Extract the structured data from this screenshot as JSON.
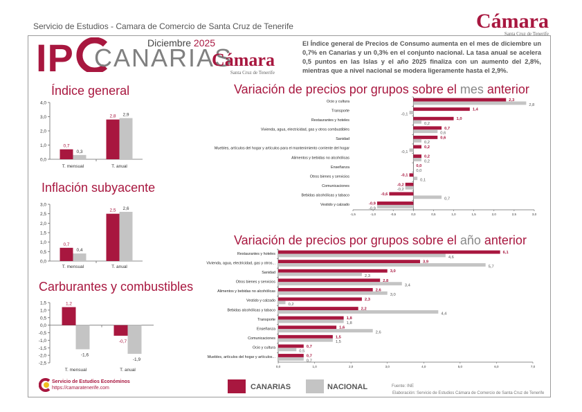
{
  "header": {
    "organization": "Servicio de Estudios - Camara de Comercio de Santa Cruz de Tenerife",
    "brand_word": "Cámara",
    "brand_sub": "Santa Cruz de Tenerife"
  },
  "banner": {
    "ipc": "IP",
    "region": "CANARIAS",
    "month": "Diciembre",
    "year": "2025",
    "summary": "El Índice general de Precios de Consumo aumenta en el mes de diciembre un 0,7% en Canarias y un 0,3% en el conjunto nacional. La tasa anual se acelera 0,5 puntos en las Islas y el año 2025 finaliza con un aumento del 2,8%, mientras que a nivel nacional se modera ligeramente hasta el 2,9%."
  },
  "colors": {
    "canarias": "#a8173f",
    "nacional": "#c4c4c4",
    "accent": "#a8173f"
  },
  "legend": {
    "canarias": "CANARIAS",
    "nacional": "NACIONAL"
  },
  "footer": {
    "service": "Servicio de Estudios Económinos",
    "url": "https://camaratenerife.com",
    "source": "Fuente: INE",
    "elaboration": "Elaboración: Servicio de Estudios Cámara de Comercio de Santa Cruz de Tenerife"
  },
  "chart_data": [
    {
      "id": "indice-general",
      "type": "bar",
      "title": "Índice general",
      "categories": [
        "T. mensual",
        "T. anual"
      ],
      "series": [
        {
          "name": "CANARIAS",
          "values": [
            0.7,
            2.8
          ],
          "labels": [
            "0,7",
            "2,8"
          ]
        },
        {
          "name": "NACIONAL",
          "values": [
            0.3,
            2.9
          ],
          "labels": [
            "0,3",
            "2,9"
          ]
        }
      ],
      "ylim": [
        0,
        4
      ],
      "yticks": [
        0,
        1,
        2,
        3,
        4
      ],
      "ytick_labels": [
        "0,0",
        "1,0",
        "2,0",
        "3,0",
        "4,0"
      ]
    },
    {
      "id": "inflacion-subyacente",
      "type": "bar",
      "title": "Inflación subyacente",
      "categories": [
        "T. mensual",
        "T. anual"
      ],
      "series": [
        {
          "name": "CANARIAS",
          "values": [
            0.7,
            2.5
          ],
          "labels": [
            "0,7",
            "2,5"
          ]
        },
        {
          "name": "NACIONAL",
          "values": [
            0.4,
            2.6
          ],
          "labels": [
            "0,4",
            "2,6"
          ]
        }
      ],
      "ylim": [
        0,
        3
      ],
      "yticks": [
        0,
        0.5,
        1,
        1.5,
        2,
        2.5,
        3
      ],
      "ytick_labels": [
        "0,0",
        "0,5",
        "1,0",
        "1,5",
        "2,0",
        "2,5",
        "3,0"
      ]
    },
    {
      "id": "carburantes",
      "type": "bar",
      "title": "Carburantes y combustibles",
      "categories": [
        "T. mensual",
        "T. anual"
      ],
      "series": [
        {
          "name": "CANARIAS",
          "values": [
            1.2,
            -0.7
          ],
          "labels": [
            "1,2",
            "-0,7"
          ]
        },
        {
          "name": "NACIONAL",
          "values": [
            -1.6,
            -1.9
          ],
          "labels": [
            "-1,6",
            "-1,9"
          ]
        }
      ],
      "ylim": [
        -2.5,
        1.5
      ],
      "yticks": [
        -2.5,
        -2,
        -1.5,
        -1,
        -0.5,
        0,
        0.5,
        1,
        1.5
      ],
      "ytick_labels": [
        "-2,5",
        "-2,0",
        "-1,5",
        "-1,0",
        "-0,5",
        "0,0",
        "0,5",
        "1,0",
        "1,5"
      ]
    },
    {
      "id": "grupos-mes",
      "type": "bar",
      "orientation": "horizontal",
      "title_parts": [
        "Variación de precios por grupos sobre el ",
        "mes",
        " anterior"
      ],
      "categories": [
        "Ocio y cultura",
        "Transporte",
        "Restaurantes y hoteles",
        "Vivienda, agua, electricidad, gas y otros combustibles",
        "Sanidad",
        "Muebles, artículos del hogar y artículos para el mantenimiento corriente del hogar",
        "Alimentos y bebidas no alcohólicas",
        "Enseñanza",
        "Otros bienes y servicios",
        "Comunicaciones",
        "Bebidas alcohólicas y tabaco",
        "Vestido y calzado"
      ],
      "series": [
        {
          "name": "CANARIAS",
          "values": [
            2.3,
            1.4,
            1.0,
            0.7,
            0.6,
            0.2,
            0.2,
            0.0,
            -0.1,
            -0.2,
            -0.6,
            -0.9
          ],
          "labels": [
            "2,3",
            "1,4",
            "1,0",
            "0,7",
            "0,6",
            "0,2",
            "0,2",
            "0,0",
            "-0,1",
            "-0,2",
            "-0,6",
            "-0,9"
          ]
        },
        {
          "name": "NACIONAL",
          "values": [
            2.8,
            -0.1,
            0.2,
            0.6,
            0.2,
            -0.1,
            0.2,
            0.0,
            0.1,
            -0.2,
            0.7,
            -0.9
          ],
          "labels": [
            "2,8",
            "-0,1",
            "0,2",
            "0,6",
            "0,2",
            "-0,1",
            "0,2",
            "0,0",
            "0,1",
            "-0,2",
            "0,7",
            "-0,9"
          ]
        }
      ],
      "xlim": [
        -1.5,
        3.0
      ],
      "xticks": [
        -1.5,
        -1,
        -0.5,
        0,
        0.5,
        1,
        1.5,
        2,
        2.5,
        3
      ],
      "xtick_labels": [
        "-1,5",
        "-1,0",
        "-0,5",
        "0,0",
        "0,5",
        "1,0",
        "1,5",
        "2,0",
        "2,5",
        "3,0"
      ]
    },
    {
      "id": "grupos-anio",
      "type": "bar",
      "orientation": "horizontal",
      "title_parts": [
        "Variación de precios por grupos sobre el ",
        "año",
        " anterior"
      ],
      "categories": [
        "Restaurantes y hoteles",
        "Vivienda, agua, electricidad, gas y otros...",
        "Sanidad",
        "Otros bienes y servicios",
        "Alimentos y bebidas no alcohólicas",
        "Vestido y calzado",
        "Bebidas alcohólicas y tabaco",
        "Transporte",
        "Enseñanza",
        "Comunicaciones",
        "Ocio y cultura",
        "Muebles, artículos del hogar y artículos..."
      ],
      "series": [
        {
          "name": "CANARIAS",
          "values": [
            6.1,
            3.9,
            3.0,
            2.8,
            2.6,
            2.3,
            2.2,
            1.8,
            1.6,
            1.5,
            0.7,
            0.7
          ],
          "labels": [
            "6,1",
            "3,9",
            "3,0",
            "2,8",
            "2,6",
            "2,3",
            "2,2",
            "1,8",
            "1,6",
            "1,5",
            "0,7",
            "0,7"
          ]
        },
        {
          "name": "NACIONAL",
          "values": [
            4.6,
            5.7,
            2.3,
            3.4,
            3.0,
            0.2,
            4.4,
            1.8,
            2.6,
            1.5,
            0.5,
            0.7
          ],
          "labels": [
            "4,6",
            "5,7",
            "2,3",
            "3,4",
            "3,0",
            "0,2",
            "4,4",
            "1,8",
            "2,6",
            "1,5",
            "0,5",
            "0,7"
          ]
        }
      ],
      "xlim": [
        0,
        7
      ],
      "xticks": [
        0,
        1,
        2,
        3,
        4,
        5,
        6,
        7
      ],
      "xtick_labels": [
        "0,0",
        "1,0",
        "2,0",
        "3,0",
        "4,0",
        "5,0",
        "6,0",
        "7,0"
      ]
    }
  ]
}
